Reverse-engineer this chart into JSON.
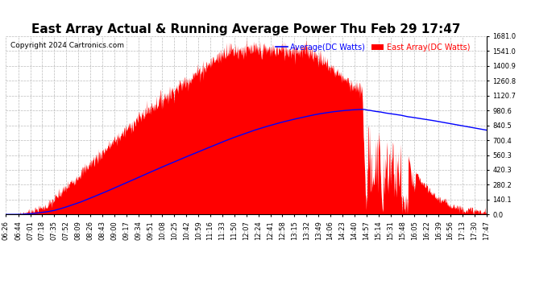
{
  "title": "East Array Actual & Running Average Power Thu Feb 29 17:47",
  "copyright": "Copyright 2024 Cartronics.com",
  "legend_labels": [
    "Average(DC Watts)",
    "East Array(DC Watts)"
  ],
  "legend_colors": [
    "blue",
    "red"
  ],
  "ylabel_right_ticks": [
    0.0,
    140.1,
    280.2,
    420.3,
    560.3,
    700.4,
    840.5,
    980.6,
    1120.7,
    1260.8,
    1400.9,
    1541.0,
    1681.0
  ],
  "ymax": 1681.0,
  "ymin": 0.0,
  "background_color": "#ffffff",
  "plot_background": "#ffffff",
  "grid_color": "#bbbbbb",
  "x_tick_labels": [
    "06:26",
    "06:44",
    "07:01",
    "07:18",
    "07:35",
    "07:52",
    "08:09",
    "08:26",
    "08:43",
    "09:00",
    "09:17",
    "09:34",
    "09:51",
    "10:08",
    "10:25",
    "10:42",
    "10:59",
    "11:16",
    "11:33",
    "11:50",
    "12:07",
    "12:24",
    "12:41",
    "12:58",
    "13:15",
    "13:32",
    "13:49",
    "14:06",
    "14:23",
    "14:40",
    "14:57",
    "15:14",
    "15:31",
    "15:48",
    "16:05",
    "16:22",
    "16:39",
    "16:56",
    "17:13",
    "17:30",
    "17:47"
  ],
  "title_fontsize": 11,
  "copyright_fontsize": 6.5,
  "tick_fontsize": 6.0
}
